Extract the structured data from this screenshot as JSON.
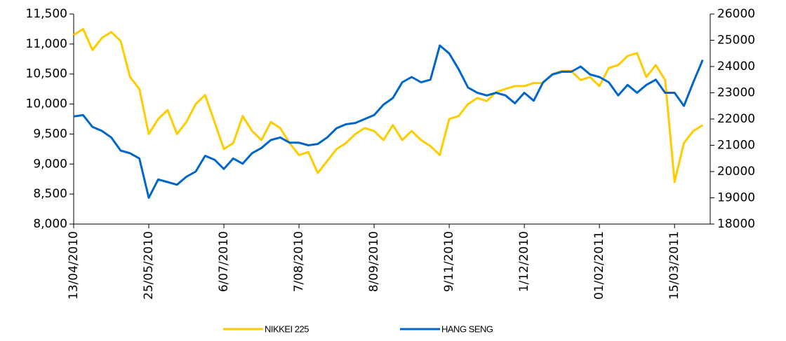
{
  "chart_data": {
    "type": "line",
    "categories": [
      "13/04/2010",
      null,
      null,
      null,
      null,
      null,
      null,
      null,
      "25/05/2010",
      null,
      null,
      null,
      null,
      null,
      null,
      null,
      "6/07/2010",
      null,
      null,
      null,
      null,
      null,
      null,
      null,
      "7/08/2010",
      null,
      null,
      null,
      null,
      null,
      null,
      null,
      "8/09/2010",
      null,
      null,
      null,
      null,
      null,
      null,
      null,
      "9/11/2010",
      null,
      null,
      null,
      null,
      null,
      null,
      null,
      "1/12/2010",
      null,
      null,
      null,
      null,
      null,
      null,
      null,
      "01/02/2011",
      null,
      null,
      null,
      null,
      null,
      null,
      null,
      "15/03/2011",
      null,
      null,
      null
    ],
    "series": [
      {
        "name": "NIKKEI 225",
        "color": "#FFCC00",
        "axis": "y",
        "values": [
          11150,
          11250,
          10900,
          11100,
          11200,
          11050,
          10450,
          10250,
          9500,
          9750,
          9900,
          9500,
          9700,
          10000,
          10150,
          9700,
          9250,
          9350,
          9800,
          9550,
          9400,
          9700,
          9600,
          9350,
          9150,
          9200,
          8850,
          9050,
          9250,
          9350,
          9500,
          9600,
          9550,
          9400,
          9650,
          9400,
          9550,
          9400,
          9300,
          9150,
          9750,
          9800,
          10000,
          10100,
          10050,
          10200,
          10250,
          10300,
          10300,
          10350,
          10350,
          10500,
          10550,
          10550,
          10400,
          10450,
          10300,
          10600,
          10650,
          10800,
          10850,
          10450,
          10650,
          10400,
          8700,
          9350,
          9550,
          9650
        ]
      },
      {
        "name": "HANG SENG",
        "color": "#0066CC",
        "axis": "y2",
        "values": [
          22100,
          22150,
          21700,
          21550,
          21300,
          20800,
          20700,
          20500,
          19000,
          19700,
          19600,
          19500,
          19800,
          20000,
          20600,
          20450,
          20100,
          20500,
          20300,
          20700,
          20900,
          21200,
          21300,
          21100,
          21100,
          21000,
          21050,
          21300,
          21650,
          21800,
          21850,
          22000,
          22150,
          22550,
          22800,
          23400,
          23600,
          23400,
          23500,
          24800,
          24500,
          23900,
          23200,
          23000,
          22900,
          23000,
          22900,
          22600,
          23000,
          22700,
          23400,
          23700,
          23800,
          23800,
          24000,
          23700,
          23600,
          23400,
          22900,
          23300,
          23000,
          23300,
          23500,
          23000,
          23000,
          22500,
          23400,
          24250
        ]
      }
    ],
    "ylim": [
      8000,
      11500
    ],
    "yticks": [
      {
        "value": 8000,
        "label": "8,000"
      },
      {
        "value": 8500,
        "label": "8,500"
      },
      {
        "value": 9000,
        "label": "9,000"
      },
      {
        "value": 9500,
        "label": "9,500"
      },
      {
        "value": 10000,
        "label": "10,000"
      },
      {
        "value": 10500,
        "label": "10,500"
      },
      {
        "value": 11000,
        "label": "11,000"
      },
      {
        "value": 11500,
        "label": "11,500"
      }
    ],
    "y2lim": [
      18000,
      26000
    ],
    "y2ticks": [
      18000,
      19000,
      20000,
      21000,
      22000,
      23000,
      24000,
      25000,
      26000
    ],
    "legend": "bottom",
    "grid": false
  }
}
